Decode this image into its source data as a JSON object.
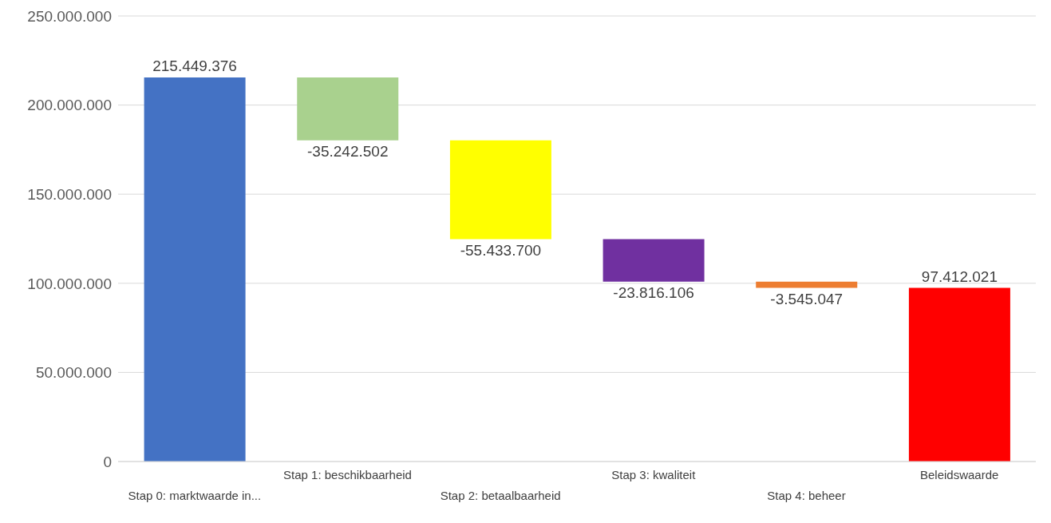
{
  "chart_data": {
    "type": "bar",
    "categories": [
      "Stap 0: marktwaarde in...",
      "Stap 1: beschikbaarheid",
      "Stap 2: betaalbaarheid",
      "Stap 3: kwaliteit",
      "Stap 4: beheer",
      "Beleidswaarde"
    ],
    "values": [
      215449376,
      -35242502,
      -55433700,
      -23816106,
      -3545047,
      97412021
    ],
    "base": [
      0,
      215449376,
      180206874,
      124773174,
      100957068,
      0
    ],
    "colors": [
      "#4472c4",
      "#a9d18e",
      "#ffff00",
      "#7030a0",
      "#ed7d31",
      "#ff0000"
    ],
    "ylim": [
      0,
      250000000
    ],
    "yticks": [
      {
        "value": 0,
        "label": "0"
      },
      {
        "value": 50000000,
        "label": "50.000.000"
      },
      {
        "value": 100000000,
        "label": "100.000.000"
      },
      {
        "value": 150000000,
        "label": "150.000.000"
      },
      {
        "value": 200000000,
        "label": "200.000.000"
      },
      {
        "value": 250000000,
        "label": "250.000.000"
      }
    ],
    "value_labels": [
      "215.449.376",
      "-35.242.502",
      "-55.433.700",
      "-23.816.106",
      "-3.545.047",
      "97.412.021"
    ],
    "grid": "y",
    "legend": false
  }
}
